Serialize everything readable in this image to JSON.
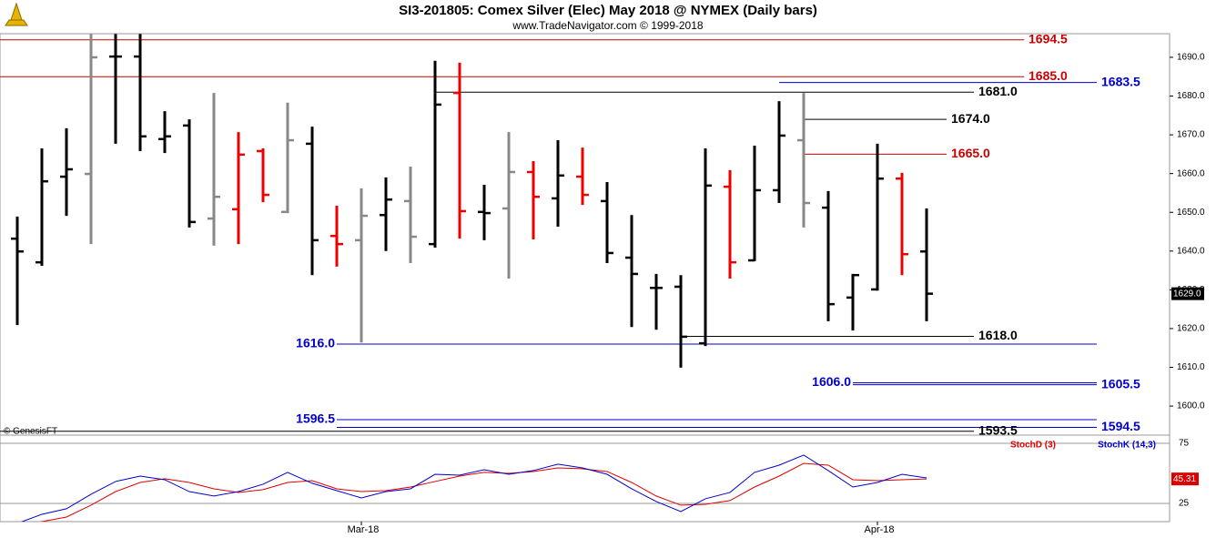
{
  "chart_data": [
    {
      "type": "ohlc",
      "title": "SI3-201805:  Comex Silver (Elec) May 2018 @ NYMEX  (Daily bars)",
      "subtitle": "www.TradeNavigator.com © 1999-2018",
      "credit": "© GenesisFT",
      "categories": [
        null,
        null,
        null,
        null,
        null,
        null,
        null,
        null,
        null,
        null,
        null,
        null,
        null,
        null,
        "Mar-18",
        null,
        null,
        null,
        null,
        null,
        null,
        null,
        null,
        null,
        null,
        null,
        null,
        null,
        null,
        null,
        null,
        null,
        null,
        null,
        null,
        "Apr-18",
        null,
        null
      ],
      "open": [
        1643.2,
        1637.1,
        1659.2,
        1659.9,
        1690.2,
        1690.2,
        1668.9,
        1672.4,
        1648.4,
        1650.8,
        1665.8,
        1650.1,
        1667.7,
        1643.9,
        1642.8,
        1649.3,
        1652.9,
        1641.8,
        1680.8,
        1650.1,
        1651.0,
        1660.4,
        1653.6,
        1659.2,
        1652.9,
        1638.3,
        1630.5,
        1630.8,
        1616.2,
        1656.6,
        1637.6,
        1655.7,
        1668.6,
        1651.2,
        1628.0,
        1630.1,
        1658.7,
        1639.9
      ],
      "high": [
        1648.9,
        1666.5,
        1671.7,
        1696.0,
        1696.0,
        1696.0,
        1676.1,
        1674.0,
        1680.8,
        1670.7,
        1666.5,
        1678.3,
        1672.1,
        1651.7,
        1656.2,
        1659.0,
        1661.8,
        1689.1,
        1688.6,
        1657.1,
        1670.7,
        1663.2,
        1668.6,
        1666.7,
        1657.8,
        1649.3,
        1634.1,
        1633.8,
        1666.5,
        1660.9,
        1667.2,
        1678.7,
        1680.8,
        1655.5,
        1634.1,
        1667.7,
        1660.2,
        1651.0
      ],
      "low": [
        1620.9,
        1636.2,
        1649.1,
        1641.8,
        1667.7,
        1665.8,
        1665.3,
        1646.1,
        1641.4,
        1641.8,
        1652.6,
        1649.8,
        1633.8,
        1636.0,
        1616.4,
        1640.0,
        1636.9,
        1640.9,
        1643.2,
        1642.8,
        1632.9,
        1643.0,
        1646.3,
        1651.9,
        1636.9,
        1620.4,
        1619.7,
        1609.9,
        1615.5,
        1632.9,
        1637.4,
        1652.4,
        1646.1,
        1621.9,
        1619.5,
        1629.8,
        1633.8,
        1621.9
      ],
      "close": [
        1639.9,
        1658.0,
        1661.1,
        1690.0,
        1690.2,
        1669.6,
        1669.6,
        1647.5,
        1654.0,
        1664.9,
        1654.5,
        1668.6,
        1642.8,
        1641.8,
        1649.1,
        1653.3,
        1643.7,
        1677.8,
        1650.3,
        1649.8,
        1660.4,
        1654.0,
        1659.5,
        1654.5,
        1639.5,
        1634.1,
        1630.5,
        1617.9,
        1656.9,
        1637.1,
        1655.7,
        1669.8,
        1652.4,
        1626.3,
        1633.8,
        1658.7,
        1639.2,
        1629.0
      ],
      "colors": [
        "#000",
        "#000",
        "#000",
        "#888",
        "#000",
        "#000",
        "#000",
        "#000",
        "#888",
        "#e00",
        "#e00",
        "#888",
        "#000",
        "#e00",
        "#888",
        "#000",
        "#888",
        "#000",
        "#e00",
        "#000",
        "#888",
        "#e00",
        "#000",
        "#e00",
        "#000",
        "#000",
        "#000",
        "#000",
        "#000",
        "#e00",
        "#000",
        "#000",
        "#888",
        "#000",
        "#000",
        "#000",
        "#e00",
        "#000"
      ],
      "ylim": [
        1592.5,
        1696.1
      ],
      "yticks": [
        {
          "value": 1600,
          "label": "1600.0"
        },
        {
          "value": 1610,
          "label": "1610.0"
        },
        {
          "value": 1620,
          "label": "1620.0"
        },
        {
          "value": 1630,
          "label": "1630.0"
        },
        {
          "value": 1640,
          "label": "1640.0"
        },
        {
          "value": 1650,
          "label": "1650.0"
        },
        {
          "value": 1660,
          "label": "1660.0"
        },
        {
          "value": 1670,
          "label": "1670.0"
        },
        {
          "value": 1680,
          "label": "1680.0"
        },
        {
          "value": 1690,
          "label": "1690.0"
        }
      ],
      "last_price": {
        "value": 1629.0,
        "label": "1629.0"
      },
      "levels": [
        {
          "value": 1694.5,
          "label": "1694.5",
          "color": "#cc0000",
          "side": "right"
        },
        {
          "value": 1685.0,
          "label": "1685.0",
          "color": "#cc0000",
          "side": "right"
        },
        {
          "value": 1683.5,
          "label": "1683.5",
          "color": "#0000cc",
          "side": "right"
        },
        {
          "value": 1681.0,
          "label": "1681.0",
          "color": "#000000",
          "side": "right"
        },
        {
          "value": 1674.0,
          "label": "1674.0",
          "color": "#000000",
          "side": "right"
        },
        {
          "value": 1665.0,
          "label": "1665.0",
          "color": "#cc0000",
          "side": "right"
        },
        {
          "value": 1618.0,
          "label": "1618.0",
          "color": "#000000",
          "side": "right"
        },
        {
          "value": 1616.0,
          "label": "1616.0",
          "color": "#0000cc",
          "side": "left"
        },
        {
          "value": 1606.0,
          "label": "1606.0",
          "color": "#0000cc",
          "side": "left"
        },
        {
          "value": 1605.5,
          "label": "1605.5",
          "color": "#0000cc",
          "side": "right"
        },
        {
          "value": 1596.5,
          "label": "1596.5",
          "color": "#0000cc",
          "side": "left"
        },
        {
          "value": 1594.5,
          "label": "1594.5",
          "color": "#0000cc",
          "side": "right"
        },
        {
          "value": 1593.5,
          "label": "1593.5",
          "color": "#000000",
          "side": "right"
        }
      ]
    },
    {
      "type": "line",
      "series": [
        {
          "name": "StochD (3)",
          "color": "#dd0000",
          "values": [
            6.1,
            9.8,
            13.6,
            23.5,
            34.8,
            42.4,
            45.5,
            42.4,
            37.1,
            34.1,
            36.4,
            42.4,
            43.9,
            37.1,
            34.8,
            35.6,
            38.6,
            43.2,
            47.7,
            50.8,
            50.0,
            51.5,
            54.5,
            53.8,
            51.5,
            42.4,
            31.1,
            23.5,
            24.2,
            27.3,
            38.6,
            47.7,
            58.3,
            56.8,
            44.7,
            43.9,
            44.7,
            45.31
          ]
        },
        {
          "name": "StochK (14,3)",
          "color": "#0000cc",
          "values": [
            8.3,
            15.9,
            20.5,
            32.6,
            43.2,
            47.7,
            44.7,
            34.8,
            31.1,
            34.8,
            40.9,
            50.8,
            41.7,
            35.6,
            29.5,
            34.8,
            37.1,
            49.2,
            48.5,
            53.0,
            49.2,
            52.3,
            57.6,
            54.5,
            49.2,
            37.1,
            26.5,
            18.2,
            28.8,
            34.1,
            50.8,
            56.8,
            65.2,
            52.3,
            38.6,
            42.4,
            49.2,
            46.2
          ]
        }
      ],
      "last_label": "45.31",
      "ylim": [
        9.8,
        81.8
      ],
      "yticks": [
        25,
        75
      ]
    }
  ]
}
